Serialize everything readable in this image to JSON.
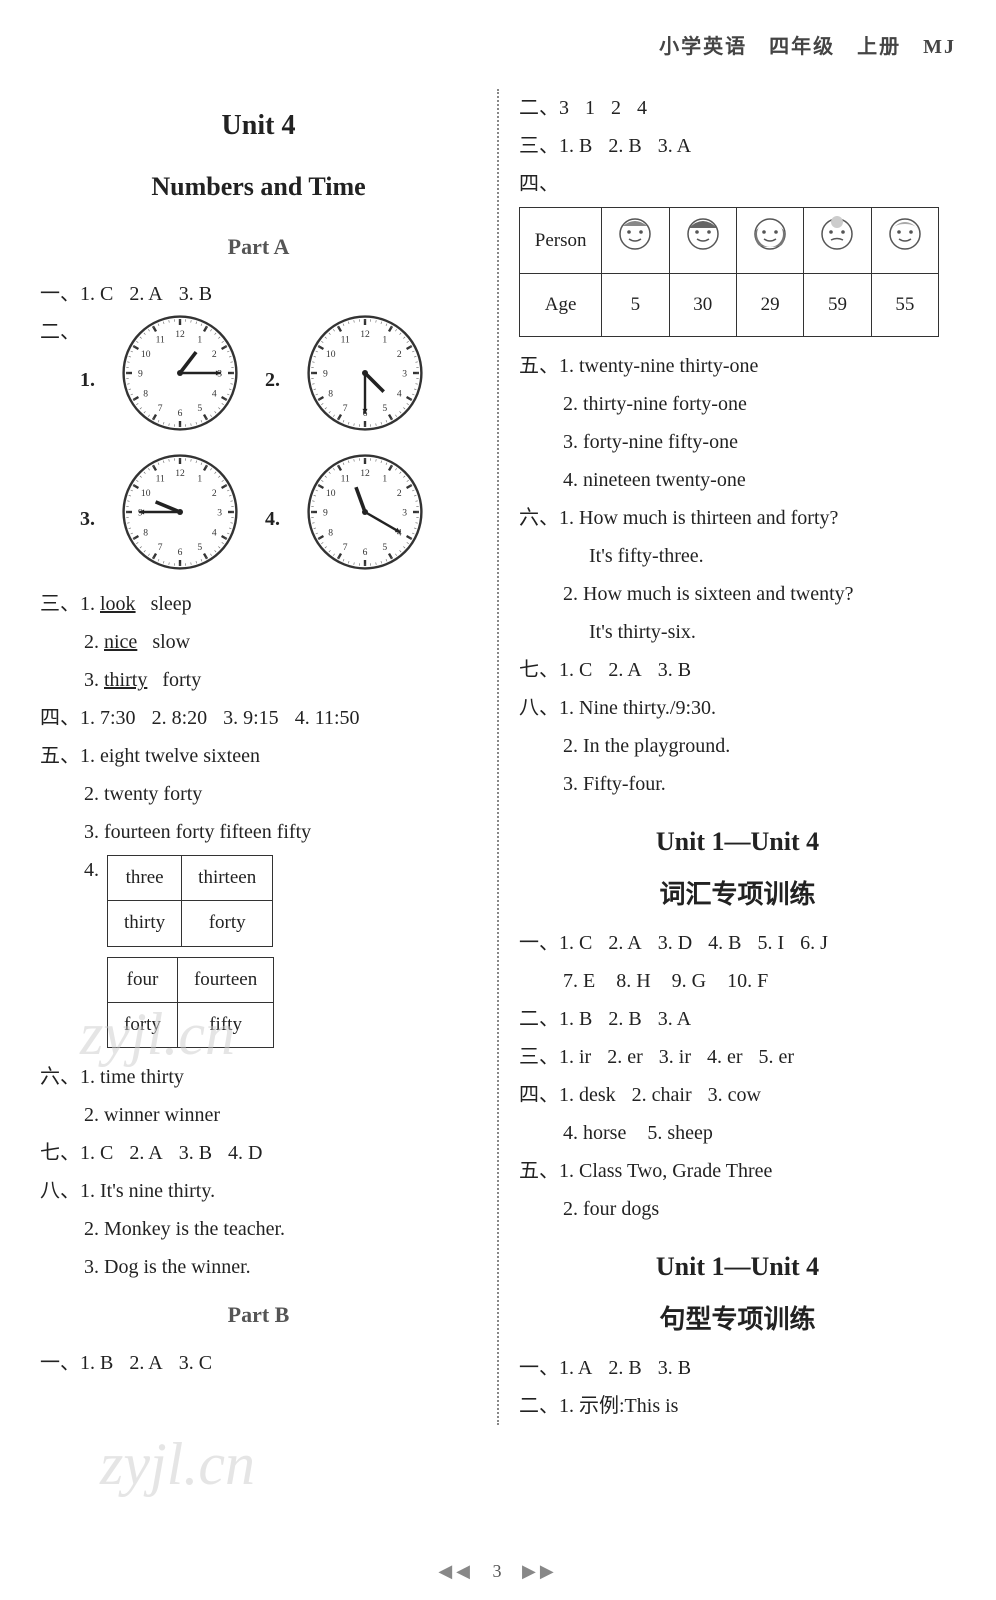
{
  "header": "小学英语　四年级　上册　MJ",
  "footer": {
    "left": "◀◀",
    "page": "3",
    "right": "▶▶"
  },
  "watermarks": [
    "zyjl.cn",
    "zyjl.cn"
  ],
  "left": {
    "unit_title": "Unit 4",
    "unit_sub": "Numbers and Time",
    "partA": "Part A",
    "q1": {
      "label": "一、",
      "items": [
        "1. C",
        "2. A",
        "3. B"
      ]
    },
    "q2": {
      "label": "二、",
      "clocks": [
        {
          "num": "1.",
          "hour": 1,
          "min": 15
        },
        {
          "num": "2.",
          "hour": 4,
          "min": 30
        },
        {
          "num": "3.",
          "hour": 9,
          "min": 45
        },
        {
          "num": "4.",
          "hour": 11,
          "min": 20
        }
      ]
    },
    "q3": {
      "label": "三、",
      "lines": [
        [
          "1.",
          "look",
          "sleep"
        ],
        [
          "2.",
          "nice",
          "slow"
        ],
        [
          "3.",
          "thirty",
          "forty"
        ]
      ]
    },
    "q4": {
      "label": "四、",
      "items": [
        "1. 7:30",
        "2. 8:20",
        "3. 9:15",
        "4. 11:50"
      ]
    },
    "q5": {
      "label": "五、",
      "lines": [
        "1. eight  twelve  sixteen",
        "2. twenty  forty",
        "3. fourteen  forty  fifteen  fifty"
      ],
      "num4": "4.",
      "table1": [
        [
          "three",
          "thirteen"
        ],
        [
          "thirty",
          "forty"
        ]
      ],
      "table2": [
        [
          "four",
          "fourteen"
        ],
        [
          "forty",
          "fifty"
        ]
      ]
    },
    "q6": {
      "label": "六、",
      "lines": [
        "1. time  thirty",
        "2. winner  winner"
      ]
    },
    "q7": {
      "label": "七、",
      "items": [
        "1. C",
        "2. A",
        "3. B",
        "4. D"
      ]
    },
    "q8": {
      "label": "八、",
      "lines": [
        "1. It's nine thirty.",
        "2. Monkey is the teacher.",
        "3. Dog is the winner."
      ]
    },
    "partB": "Part B",
    "qB1": {
      "label": "一、",
      "items": [
        "1. B",
        "2. A",
        "3. C"
      ]
    }
  },
  "right": {
    "q2": {
      "label": "二、",
      "items": [
        "3",
        "1",
        "2",
        "4"
      ]
    },
    "q3": {
      "label": "三、",
      "items": [
        "1. B",
        "2. B",
        "3. A"
      ]
    },
    "q4": {
      "label": "四、",
      "headers": [
        "Person",
        "",
        "",
        "",
        "",
        ""
      ],
      "row_label": "Age",
      "ages": [
        "5",
        "30",
        "29",
        "59",
        "55"
      ]
    },
    "q5": {
      "label": "五、",
      "lines": [
        "1. twenty-nine  thirty-one",
        "2. thirty-nine  forty-one",
        "3. forty-nine  fifty-one",
        "4. nineteen  twenty-one"
      ]
    },
    "q6": {
      "label": "六、",
      "lines": [
        "1. How much is thirteen and forty?",
        "   It's fifty-three.",
        "2. How much is sixteen and twenty?",
        "   It's thirty-six."
      ]
    },
    "q7": {
      "label": "七、",
      "items": [
        "1. C",
        "2. A",
        "3. B"
      ]
    },
    "q8": {
      "label": "八、",
      "lines": [
        "1. Nine thirty./9:30.",
        "2. In the playground.",
        "3. Fifty-four."
      ]
    },
    "special1_title1": "Unit 1—Unit 4",
    "special1_title2": "词汇专项训练",
    "s1q1": {
      "label": "一、",
      "items": [
        "1. C",
        "2. A",
        "3. D",
        "4. B",
        "5. I",
        "6. J",
        "7. E",
        "8. H",
        "9. G",
        "10. F"
      ]
    },
    "s1q2": {
      "label": "二、",
      "items": [
        "1. B",
        "2. B",
        "3. A"
      ]
    },
    "s1q3": {
      "label": "三、",
      "items": [
        "1. ir",
        "2. er",
        "3. ir",
        "4. er",
        "5. er"
      ]
    },
    "s1q4": {
      "label": "四、",
      "items": [
        "1. desk",
        "2. chair",
        "3. cow",
        "4. horse",
        "5. sheep"
      ]
    },
    "s1q5": {
      "label": "五、",
      "lines": [
        "1. Class  Two,  Grade  Three",
        "2. four dogs"
      ]
    },
    "special2_title1": "Unit 1—Unit 4",
    "special2_title2": "句型专项训练",
    "s2q1": {
      "label": "一、",
      "items": [
        "1. A",
        "2. B",
        "3. B"
      ]
    },
    "s2q2": {
      "label": "二、",
      "text": "1. 示例:This is"
    }
  }
}
